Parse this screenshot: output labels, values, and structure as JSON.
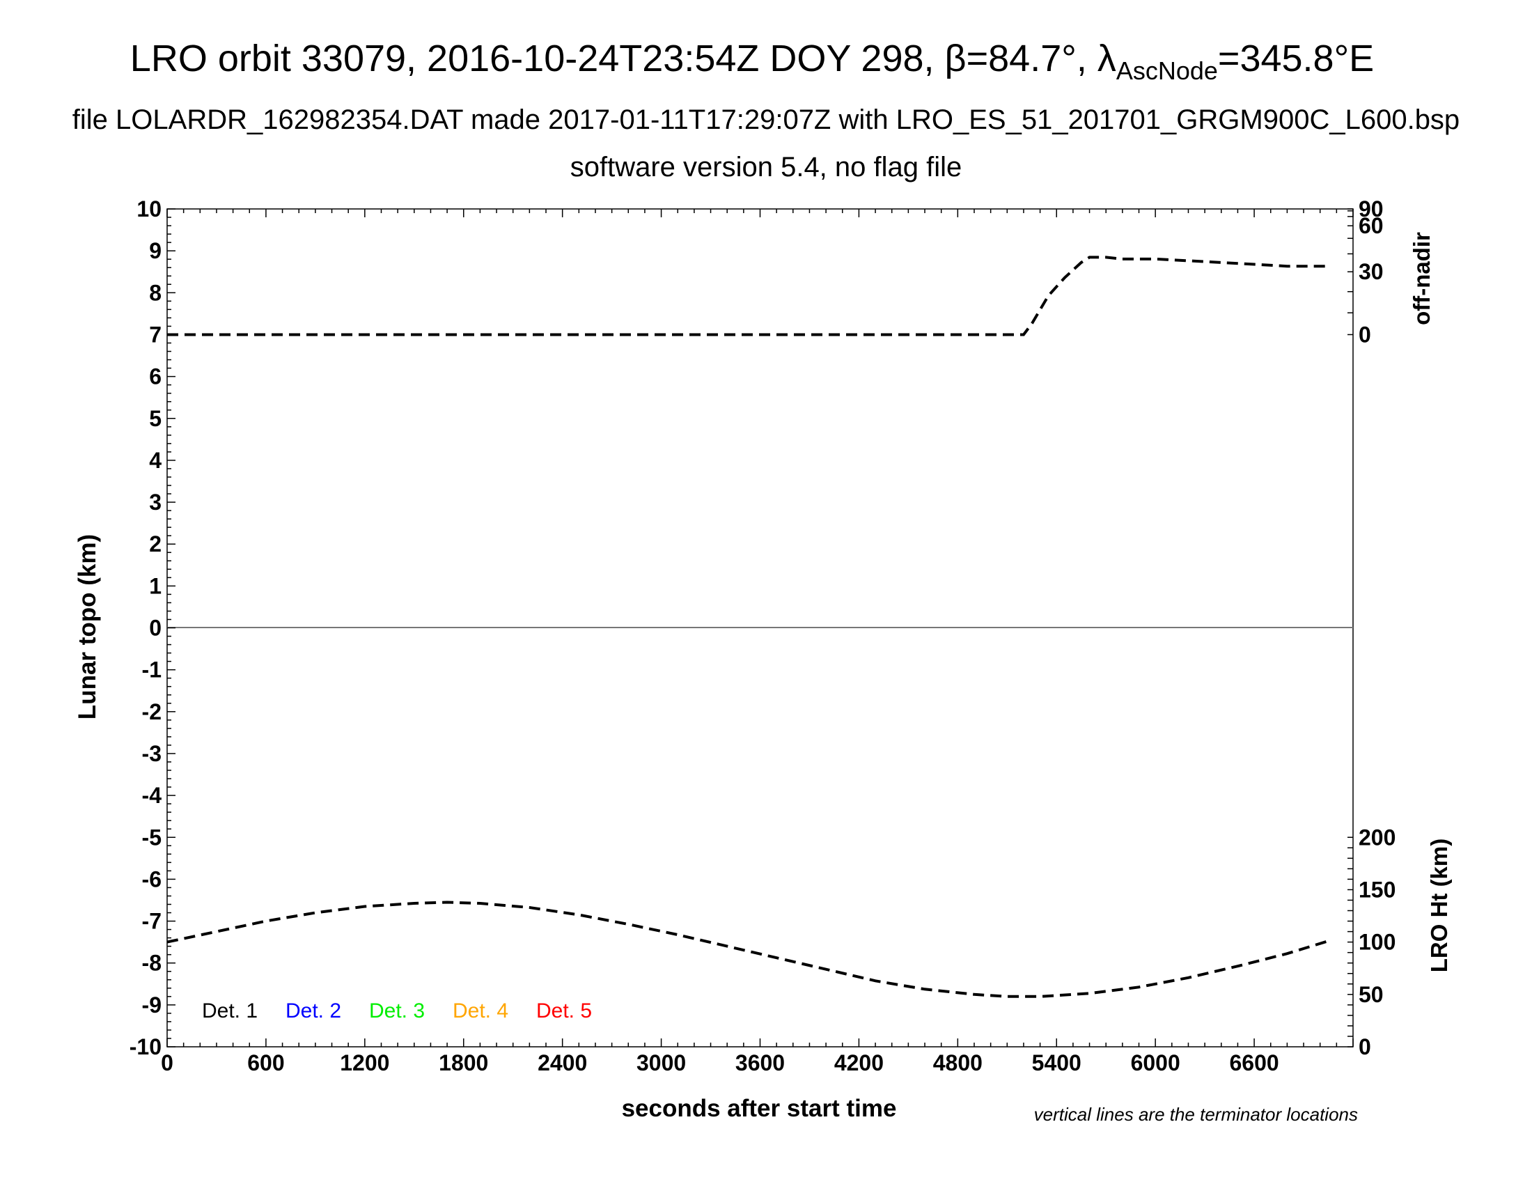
{
  "chart_data": {
    "type": "line",
    "title_main": "LRO orbit 33079, 2016-10-24T23:54Z DOY 298, ",
    "title_beta_symbol": "β",
    "title_beta_value": "=84.7°, ",
    "title_lambda_symbol": "λ",
    "title_lambda_sub": "AscNode",
    "title_lambda_value": "=345.8°E",
    "subtitle": "file LOLARDR_162982354.DAT made 2017-01-11T17:29:07Z with LRO_ES_51_201701_GRGM900C_L600.bsp",
    "subtitle2": "software version 5.4, no flag file",
    "xlabel": "seconds after start time",
    "ylabel": "Lunar topo (km)",
    "y2label_top": "off-nadir",
    "y2label_bottom": "LRO Ht (km)",
    "note": "vertical lines are the terminator locations",
    "xlim": [
      0,
      7200
    ],
    "ylim": [
      -10,
      10
    ],
    "xticks": [
      "0",
      "600",
      "1200",
      "1800",
      "2400",
      "3000",
      "3600",
      "4200",
      "4800",
      "5400",
      "6000",
      "6600"
    ],
    "yticks": [
      "10",
      "9",
      "8",
      "7",
      "6",
      "5",
      "4",
      "3",
      "2",
      "1",
      "0",
      "-1",
      "-2",
      "-3",
      "-4",
      "-5",
      "-6",
      "-7",
      "-8",
      "-9",
      "-10"
    ],
    "offnadir_ticks": [
      "90",
      "60",
      "30",
      "0"
    ],
    "height_ticks": [
      "200",
      "150",
      "100",
      "50",
      "0"
    ],
    "legend": [
      {
        "label": "Det. 1",
        "color": "#000000"
      },
      {
        "label": "Det. 2",
        "color": "#0000ff"
      },
      {
        "label": "Det. 3",
        "color": "#00ee00"
      },
      {
        "label": "Det. 4",
        "color": "#ffa500"
      },
      {
        "label": "Det. 5",
        "color": "#ff0000"
      }
    ],
    "series": [
      {
        "axis": "off-nadir (deg)",
        "style": "dashed",
        "color": "#000000",
        "x": [
          0,
          1000,
          2000,
          3000,
          4000,
          5000,
          5200,
          5250,
          5350,
          5450,
          5550,
          5600,
          5700,
          5800,
          6000,
          6200,
          6400,
          6600,
          6800,
          7050
        ],
        "y": [
          0,
          0,
          0,
          0,
          0,
          0,
          0,
          5,
          18,
          27,
          35,
          38,
          38,
          37,
          37,
          36,
          35,
          34,
          33,
          33
        ]
      },
      {
        "axis": "LRO Ht (km)",
        "style": "dashed",
        "color": "#000000",
        "x": [
          0,
          300,
          600,
          900,
          1200,
          1500,
          1700,
          1900,
          2200,
          2500,
          2800,
          3100,
          3400,
          3700,
          4000,
          4300,
          4600,
          4900,
          5100,
          5300,
          5600,
          5900,
          6200,
          6500,
          6800,
          7050
        ],
        "y": [
          100,
          110,
          120,
          128,
          134,
          137,
          138,
          137,
          133,
          126,
          117,
          107,
          96,
          85,
          74,
          63,
          55,
          50,
          48,
          48,
          51,
          57,
          66,
          77,
          89,
          101
        ]
      }
    ]
  }
}
